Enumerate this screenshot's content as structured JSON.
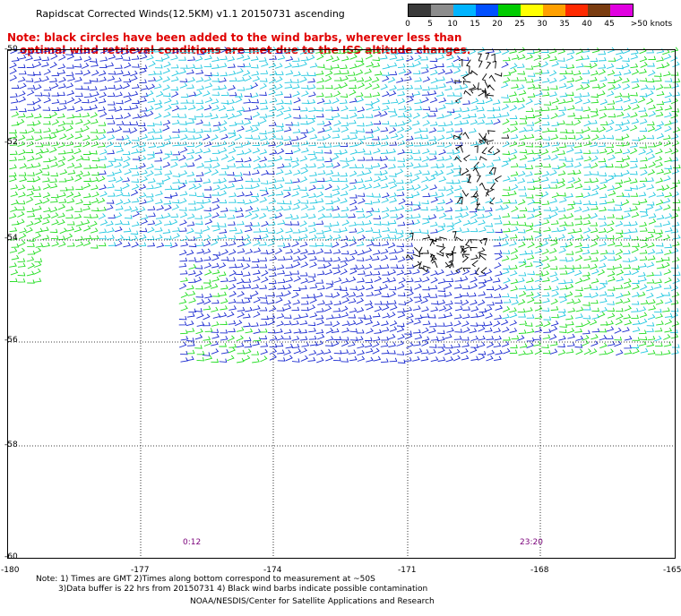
{
  "header": {
    "title": "Rapidscat Corrected Winds(12.5KM) v1.1 20150731 ascending"
  },
  "note": {
    "line1": "Note: black circles have been added to the wind barbs, wherever less than",
    "line2": "optimal wind retrieval conditions are met due to the ISS altitude changes."
  },
  "legend": {
    "labels": [
      "0",
      "5",
      "10",
      "15",
      "20",
      "25",
      "30",
      "35",
      "40",
      "45",
      ">50 knots"
    ],
    "colors": [
      "#3a3a3a",
      "#8c8c8c",
      "#00b4ff",
      "#0050ff",
      "#00cc00",
      "#ffff00",
      "#ffa000",
      "#ff2a00",
      "#7a3c10",
      "#e000e0",
      "#3c0078"
    ]
  },
  "axes": {
    "lat_labels": [
      "-50",
      "-52",
      "-54",
      "-56",
      "-58",
      "-60"
    ],
    "lon_labels": [
      "-180",
      "-177",
      "-174",
      "-171",
      "-168",
      "-165"
    ]
  },
  "times": [
    "0:12",
    "23:20"
  ],
  "footer": {
    "line1": "Note: 1) Times are GMT 2)Times along bottom correspond to measurement at ~50S",
    "line2": "3)Data buffer is 22 hrs from 20150731 4) Black wind barbs indicate possible contamination",
    "line3": "NOAA/NESDIS/Center for Satellite Applications and Research"
  },
  "wind_colors": {
    "cyan": "#22c8e0",
    "blue": "#1a2ad0",
    "green": "#22dd22",
    "black": "#000000"
  }
}
